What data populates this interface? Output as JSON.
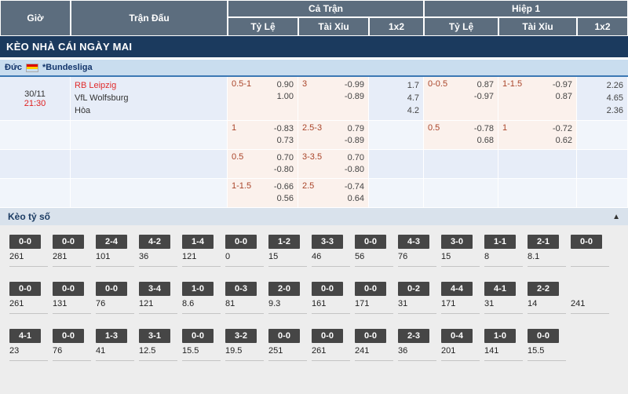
{
  "colors": {
    "header_bg": "#5c6d7e",
    "banner_bg": "#1b3a5e",
    "league_bg": "#c9ddef",
    "row_blue": "#e7edf8",
    "odds_tint": "#fbf1ec",
    "score_badge_bg": "#464646",
    "team_red": "#e02b2b",
    "handicap_red": "#a94429"
  },
  "header": {
    "col_time": "Giờ",
    "col_match": "Trận Đấu",
    "group_full": "Cả Trận",
    "group_half": "Hiệp 1",
    "sub_handicap": "Tỷ Lệ",
    "sub_ou": "Tài Xỉu",
    "sub_1x2": "1x2"
  },
  "banner": {
    "title": "KÈO NHÀ CÁI NGÀY MAI"
  },
  "league": {
    "country": "Đức",
    "flag_icon": "germany-flag",
    "name": "*Bundesliga"
  },
  "match": {
    "date": "30/11",
    "time": "21:30",
    "home": "RB Leipzig",
    "away": "VfL Wolfsburg",
    "draw_label": "Hòa"
  },
  "odds_rows": [
    {
      "ft_hc": {
        "line": "0.5-1",
        "o1": "0.90",
        "o2": "1.00"
      },
      "ft_ou": {
        "line": "3",
        "o1": "-0.99",
        "o2": "-0.89"
      },
      "ft_1x2": [
        "1.7",
        "4.7",
        "4.2"
      ],
      "h1_hc": {
        "line": "0-0.5",
        "o1": "0.87",
        "o2": "-0.97"
      },
      "h1_ou": {
        "line": "1-1.5",
        "o1": "-0.97",
        "o2": "0.87"
      },
      "h1_1x2": [
        "2.26",
        "4.65",
        "2.36"
      ]
    },
    {
      "ft_hc": {
        "line": "1",
        "o1": "-0.83",
        "o2": "0.73"
      },
      "ft_ou": {
        "line": "2.5-3",
        "o1": "0.79",
        "o2": "-0.89"
      },
      "h1_hc": {
        "line": "0.5",
        "o1": "-0.78",
        "o2": "0.68"
      },
      "h1_ou": {
        "line": "1",
        "o1": "-0.72",
        "o2": "0.62"
      }
    },
    {
      "ft_hc": {
        "line": "0.5",
        "o1": "0.70",
        "o2": "-0.80"
      },
      "ft_ou": {
        "line": "3-3.5",
        "o1": "0.70",
        "o2": "-0.80"
      }
    },
    {
      "ft_hc": {
        "line": "1-1.5",
        "o1": "-0.66",
        "o2": "0.56"
      },
      "ft_ou": {
        "line": "2.5",
        "o1": "-0.74",
        "o2": "0.64"
      }
    }
  ],
  "score_section": {
    "title": "Kèo tỷ số",
    "collapse_icon": "triangle-up",
    "rows": [
      [
        {
          "score": "0-0",
          "odds": "261"
        },
        {
          "score": "0-0",
          "odds": "281"
        },
        {
          "score": "2-4",
          "odds": "101"
        },
        {
          "score": "4-2",
          "odds": "36"
        },
        {
          "score": "1-4",
          "odds": "121"
        },
        {
          "score": "0-0",
          "odds": "0"
        },
        {
          "score": "1-2",
          "odds": "15"
        },
        {
          "score": "3-3",
          "odds": "46"
        },
        {
          "score": "0-0",
          "odds": "56"
        },
        {
          "score": "4-3",
          "odds": "76"
        },
        {
          "score": "3-0",
          "odds": "15"
        },
        {
          "score": "1-1",
          "odds": "8"
        },
        {
          "score": "2-1",
          "odds": "8.1"
        },
        {
          "score": "0-0",
          "odds": ""
        }
      ],
      [
        {
          "score": "0-0",
          "odds": "261"
        },
        {
          "score": "0-0",
          "odds": "131"
        },
        {
          "score": "0-0",
          "odds": "76"
        },
        {
          "score": "3-4",
          "odds": "121"
        },
        {
          "score": "1-0",
          "odds": "8.6"
        },
        {
          "score": "0-3",
          "odds": "81"
        },
        {
          "score": "2-0",
          "odds": "9.3"
        },
        {
          "score": "0-0",
          "odds": "161"
        },
        {
          "score": "0-0",
          "odds": "171"
        },
        {
          "score": "0-2",
          "odds": "31"
        },
        {
          "score": "4-4",
          "odds": "171"
        },
        {
          "score": "4-1",
          "odds": "31"
        },
        {
          "score": "2-2",
          "odds": "14"
        },
        {
          "score": "",
          "odds": "241"
        }
      ],
      [
        {
          "score": "4-1",
          "odds": "23"
        },
        {
          "score": "0-0",
          "odds": "76"
        },
        {
          "score": "1-3",
          "odds": "41"
        },
        {
          "score": "3-1",
          "odds": "12.5"
        },
        {
          "score": "0-0",
          "odds": "15.5"
        },
        {
          "score": "3-2",
          "odds": "19.5"
        },
        {
          "score": "0-0",
          "odds": "251"
        },
        {
          "score": "0-0",
          "odds": "261"
        },
        {
          "score": "0-0",
          "odds": "241"
        },
        {
          "score": "2-3",
          "odds": "36"
        },
        {
          "score": "0-4",
          "odds": "201"
        },
        {
          "score": "1-0",
          "odds": "141"
        },
        {
          "score": "0-0",
          "odds": "15.5"
        }
      ]
    ]
  }
}
